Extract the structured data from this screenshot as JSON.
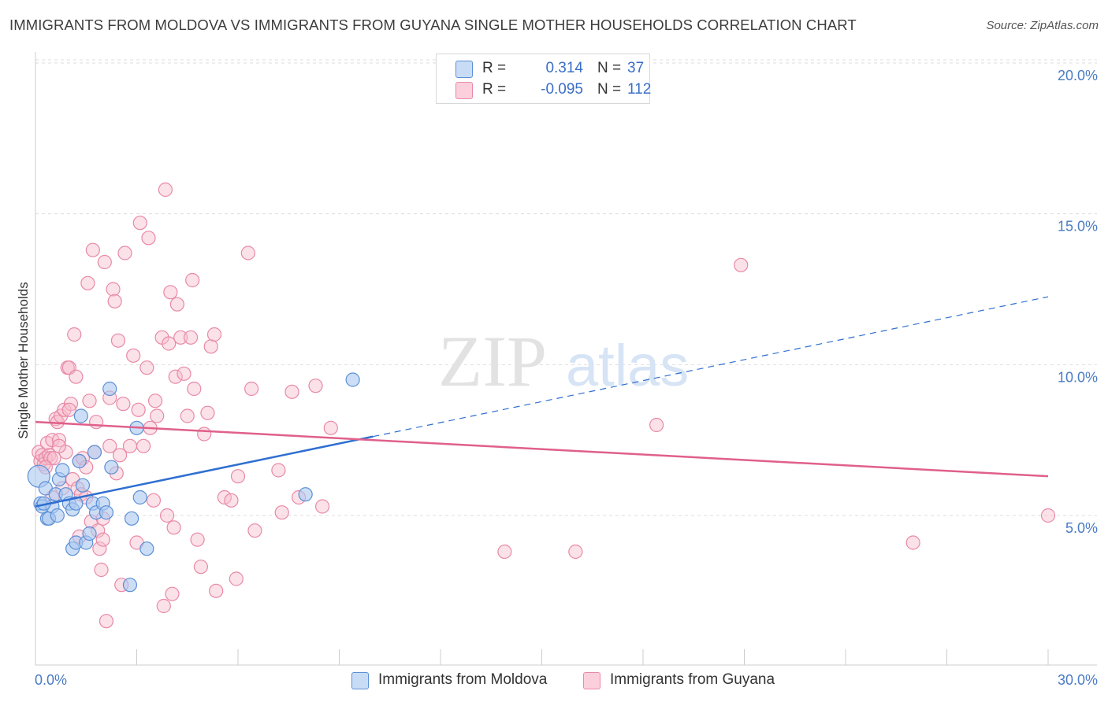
{
  "title": "IMMIGRANTS FROM MOLDOVA VS IMMIGRANTS FROM GUYANA SINGLE MOTHER HOUSEHOLDS CORRELATION CHART",
  "source": "Source: ZipAtlas.com",
  "watermark": {
    "zip": "ZIP",
    "atlas": "atlas"
  },
  "colors": {
    "moldova_fill": "#aac8f0",
    "moldova_stroke": "#5b8fd6",
    "moldova_line": "#2f6fd0",
    "guyana_fill": "#f6bccd",
    "guyana_stroke": "#e889a6",
    "guyana_line": "#e0608a",
    "tick_label": "#4a7bc4",
    "grid": "#dddddd"
  },
  "legend": {
    "rows": [
      {
        "r_label": "R =",
        "r_value": "0.314",
        "n_label": "N =",
        "n_value": "37"
      },
      {
        "r_label": "R =",
        "r_value": "-0.095",
        "n_label": "N =",
        "n_value": "112"
      }
    ]
  },
  "bottom_legend": {
    "moldova": "Immigrants from Moldova",
    "guyana": "Immigrants from Guyana"
  },
  "chart_data": {
    "type": "scatter",
    "title": "IMMIGRANTS FROM MOLDOVA VS IMMIGRANTS FROM GUYANA SINGLE MOTHER HOUSEHOLDS CORRELATION CHART",
    "xlabel": "",
    "ylabel": "Single Mother Households",
    "xlim": [
      0,
      30
    ],
    "ylim": [
      0,
      20.8
    ],
    "x_tick_labels": [
      "0.0%",
      "30.0%"
    ],
    "y_ticks": [
      5,
      10,
      15,
      20
    ],
    "y_tick_labels": [
      "5.0%",
      "10.0%",
      "15.0%",
      "20.0%"
    ],
    "grid": true,
    "series": [
      {
        "name": "Immigrants from Moldova",
        "points": [
          [
            0.1,
            6.3
          ],
          [
            0.15,
            5.4
          ],
          [
            0.2,
            5.3
          ],
          [
            0.3,
            5.9
          ],
          [
            0.35,
            4.9
          ],
          [
            0.4,
            4.9
          ],
          [
            0.5,
            5.3
          ],
          [
            0.6,
            5.7
          ],
          [
            0.65,
            5.0
          ],
          [
            0.7,
            6.2
          ],
          [
            0.8,
            6.5
          ],
          [
            0.9,
            5.7
          ],
          [
            1.0,
            5.4
          ],
          [
            1.1,
            5.2
          ],
          [
            1.2,
            5.4
          ],
          [
            1.1,
            3.9
          ],
          [
            1.2,
            4.1
          ],
          [
            1.3,
            6.8
          ],
          [
            1.35,
            8.3
          ],
          [
            1.4,
            6.0
          ],
          [
            1.5,
            4.1
          ],
          [
            1.6,
            4.4
          ],
          [
            1.7,
            5.4
          ],
          [
            1.75,
            7.1
          ],
          [
            1.8,
            5.1
          ],
          [
            2.0,
            5.4
          ],
          [
            2.1,
            5.1
          ],
          [
            2.2,
            9.2
          ],
          [
            2.25,
            6.6
          ],
          [
            2.8,
            2.7
          ],
          [
            2.85,
            4.9
          ],
          [
            3.0,
            7.9
          ],
          [
            3.1,
            5.6
          ],
          [
            3.3,
            3.9
          ],
          [
            8.0,
            5.7
          ],
          [
            9.4,
            9.5
          ],
          [
            0.25,
            5.4
          ]
        ]
      },
      {
        "name": "Immigrants from Guyana",
        "points": [
          [
            0.1,
            7.1
          ],
          [
            0.15,
            6.8
          ],
          [
            0.2,
            7.0
          ],
          [
            0.25,
            6.7
          ],
          [
            0.3,
            6.9
          ],
          [
            0.35,
            7.4
          ],
          [
            0.4,
            7.0
          ],
          [
            0.45,
            6.9
          ],
          [
            0.5,
            7.5
          ],
          [
            0.55,
            6.9
          ],
          [
            0.6,
            8.2
          ],
          [
            0.65,
            8.1
          ],
          [
            0.7,
            7.5
          ],
          [
            0.75,
            8.3
          ],
          [
            0.8,
            5.9
          ],
          [
            0.85,
            8.5
          ],
          [
            0.9,
            7.1
          ],
          [
            0.95,
            9.9
          ],
          [
            1.0,
            9.9
          ],
          [
            1.05,
            8.7
          ],
          [
            1.1,
            6.2
          ],
          [
            1.15,
            11.0
          ],
          [
            1.2,
            9.6
          ],
          [
            1.25,
            5.9
          ],
          [
            1.3,
            6.8
          ],
          [
            1.35,
            5.7
          ],
          [
            1.4,
            6.9
          ],
          [
            1.5,
            6.6
          ],
          [
            1.55,
            12.7
          ],
          [
            1.6,
            8.8
          ],
          [
            1.65,
            4.8
          ],
          [
            1.7,
            13.8
          ],
          [
            1.75,
            7.1
          ],
          [
            1.8,
            8.1
          ],
          [
            1.85,
            4.5
          ],
          [
            1.9,
            3.9
          ],
          [
            1.95,
            3.2
          ],
          [
            2.0,
            4.2
          ],
          [
            2.05,
            13.4
          ],
          [
            2.1,
            1.5
          ],
          [
            2.2,
            7.3
          ],
          [
            2.3,
            12.5
          ],
          [
            2.35,
            12.1
          ],
          [
            2.4,
            6.4
          ],
          [
            2.45,
            10.8
          ],
          [
            2.5,
            7.0
          ],
          [
            2.55,
            2.7
          ],
          [
            2.6,
            8.7
          ],
          [
            2.65,
            13.7
          ],
          [
            2.8,
            7.3
          ],
          [
            2.9,
            10.3
          ],
          [
            3.0,
            4.1
          ],
          [
            3.05,
            8.5
          ],
          [
            3.1,
            14.7
          ],
          [
            3.2,
            7.3
          ],
          [
            3.3,
            9.9
          ],
          [
            3.35,
            14.2
          ],
          [
            3.4,
            7.9
          ],
          [
            3.5,
            5.5
          ],
          [
            3.55,
            8.8
          ],
          [
            3.6,
            8.3
          ],
          [
            3.75,
            10.9
          ],
          [
            3.8,
            2.0
          ],
          [
            3.85,
            15.8
          ],
          [
            3.9,
            5.0
          ],
          [
            3.95,
            10.7
          ],
          [
            4.0,
            12.4
          ],
          [
            4.05,
            2.4
          ],
          [
            4.1,
            4.6
          ],
          [
            4.15,
            9.6
          ],
          [
            4.2,
            12.0
          ],
          [
            4.3,
            10.9
          ],
          [
            4.4,
            9.7
          ],
          [
            4.5,
            8.3
          ],
          [
            4.6,
            10.9
          ],
          [
            4.65,
            12.8
          ],
          [
            4.7,
            9.2
          ],
          [
            4.8,
            4.2
          ],
          [
            4.9,
            3.3
          ],
          [
            5.0,
            7.7
          ],
          [
            5.1,
            8.4
          ],
          [
            5.2,
            10.6
          ],
          [
            5.3,
            11.0
          ],
          [
            5.35,
            2.5
          ],
          [
            5.6,
            5.6
          ],
          [
            5.8,
            5.5
          ],
          [
            5.95,
            2.9
          ],
          [
            6.0,
            6.3
          ],
          [
            6.3,
            13.7
          ],
          [
            6.4,
            9.2
          ],
          [
            6.5,
            4.5
          ],
          [
            7.2,
            6.5
          ],
          [
            7.3,
            5.1
          ],
          [
            7.6,
            9.1
          ],
          [
            7.8,
            5.6
          ],
          [
            8.3,
            9.3
          ],
          [
            8.5,
            5.3
          ],
          [
            8.75,
            7.9
          ],
          [
            13.9,
            3.8
          ],
          [
            16.0,
            3.8
          ],
          [
            18.4,
            8.0
          ],
          [
            20.9,
            13.3
          ],
          [
            26.0,
            4.1
          ],
          [
            30.0,
            5.0
          ],
          [
            0.3,
            6.6
          ],
          [
            0.5,
            5.6
          ],
          [
            0.7,
            7.3
          ],
          [
            1.0,
            8.5
          ],
          [
            1.3,
            4.3
          ],
          [
            1.5,
            5.6
          ],
          [
            2.0,
            4.9
          ],
          [
            2.2,
            8.9
          ]
        ]
      }
    ],
    "trendlines": [
      {
        "series": "Immigrants from Moldova",
        "x0": 0.0,
        "y0": 5.3,
        "x_solid_end": 10.0,
        "x_end": 30.0,
        "y_end": 12.25
      },
      {
        "series": "Immigrants from Guyana",
        "x0": 0.0,
        "y0": 8.1,
        "x_end": 30.0,
        "y_end": 6.3
      }
    ]
  }
}
